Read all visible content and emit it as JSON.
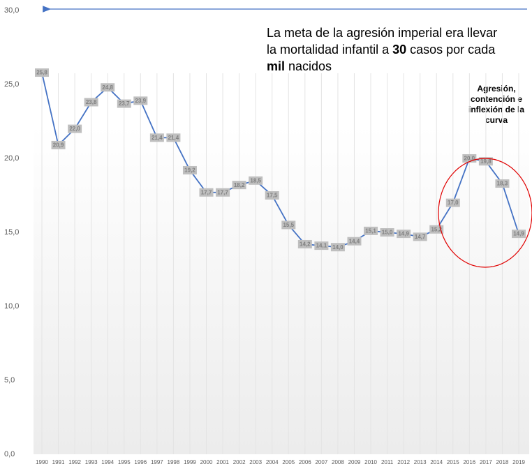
{
  "chart_data": {
    "type": "line",
    "categories": [
      "1990",
      "1991",
      "1992",
      "1993",
      "1994",
      "1995",
      "1996",
      "1997",
      "1998",
      "1999",
      "2000",
      "2001",
      "2002",
      "2003",
      "2004",
      "2005",
      "2006",
      "2007",
      "2008",
      "2009",
      "2010",
      "2011",
      "2012",
      "2013",
      "2014",
      "2015",
      "2016",
      "2017",
      "2018",
      "2019"
    ],
    "values": [
      25.8,
      20.9,
      22.0,
      23.8,
      24.8,
      23.7,
      23.9,
      21.4,
      21.4,
      19.2,
      17.7,
      17.7,
      18.2,
      18.5,
      17.5,
      15.5,
      14.2,
      14.1,
      14.0,
      14.4,
      15.1,
      15.0,
      14.9,
      14.7,
      15.2,
      17.0,
      20.0,
      19.8,
      18.3,
      14.9
    ],
    "value_labels": [
      "25,8",
      "20,9",
      "22,0",
      "23,8",
      "24,8",
      "23,7",
      "23,9",
      "21,4",
      "21,4",
      "19,2",
      "17,7",
      "17,7",
      "18,2",
      "18,5",
      "17,5",
      "15,5",
      "14,2",
      "14,1",
      "14,0",
      "14,4",
      "15,1",
      "15,0",
      "14,9",
      "14,7",
      "15,2",
      "17,0",
      "20,0",
      "19,8",
      "18,3",
      "14,9"
    ],
    "color": "#4472c4",
    "ylim": [
      0,
      30
    ],
    "yticks": [
      {
        "value": 0,
        "label": "0,0"
      },
      {
        "value": 5,
        "label": "5,0"
      },
      {
        "value": 10,
        "label": "10,0"
      },
      {
        "value": 15,
        "label": "15,0"
      },
      {
        "value": 20,
        "label": "20,0"
      },
      {
        "value": 25,
        "label": "25,0"
      },
      {
        "value": 30,
        "label": "30,0"
      }
    ],
    "grid": true,
    "annotations": [
      {
        "segments": [
          "La meta de la agresión imperial era llevar",
          "la mortalidad infantil a ",
          "30",
          " casos por cada",
          "mil",
          " nacidos"
        ]
      },
      {
        "lines": [
          "Agresión,",
          "contención e",
          "inflexión de la",
          "curva"
        ]
      }
    ]
  }
}
